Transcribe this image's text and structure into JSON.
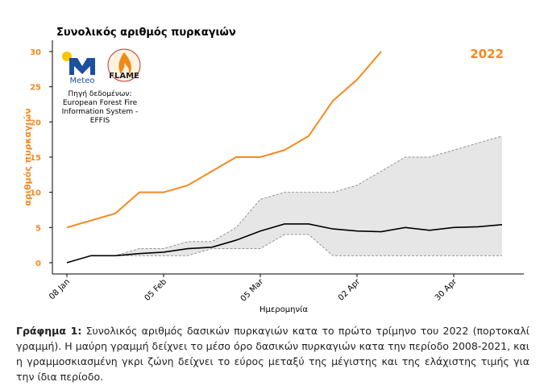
{
  "chart_data": {
    "type": "line",
    "title": "Συνολικός αριθμός πυρκαγιών",
    "ylabel": "αριθμός πυρκαγιών",
    "xlabel": "Ημερομηνία",
    "categories": [
      "08 Jan",
      null,
      null,
      null,
      "05 Feb",
      null,
      null,
      null,
      "05 Mar",
      null,
      null,
      null,
      "02 Apr",
      null,
      null,
      null,
      "30 Apr",
      null,
      null
    ],
    "series": [
      {
        "name": "2022",
        "color": "#f5891f",
        "values": [
          5,
          6,
          7,
          10,
          10,
          11,
          13,
          15,
          15,
          16,
          18,
          23,
          26,
          30,
          null,
          null,
          null,
          null,
          null
        ]
      },
      {
        "color": "#000000",
        "values": [
          0,
          1,
          1,
          1.3,
          1.5,
          2,
          2.2,
          3.2,
          4.5,
          5.5,
          5.5,
          4.8,
          4.5,
          4.4,
          5,
          4.6,
          5,
          5.1,
          5.4
        ]
      }
    ],
    "range": {
      "color": "#e6e6e6",
      "max": [
        0,
        1,
        1,
        2,
        2,
        3,
        3,
        5,
        9,
        10,
        10,
        10,
        11,
        13,
        15,
        15,
        16,
        17,
        18
      ],
      "min": [
        0,
        1,
        1,
        1,
        1,
        1,
        2,
        2,
        2,
        4,
        4,
        1,
        1,
        1,
        1,
        1,
        1,
        1,
        1
      ]
    },
    "ylim": [
      -1.6,
      31.6
    ],
    "yticks": [
      0,
      5,
      10,
      15,
      20,
      25,
      30
    ],
    "logos": {
      "meteo": "Meteo",
      "flame": "FLAME"
    },
    "source": [
      "Πηγή δεδομένων:",
      "European Forest Fire",
      "Information System -",
      "EFFIS"
    ]
  },
  "caption": {
    "label": "Γράφημα 1:",
    "text": "Συνολικός αριθμός δασικών πυρκαγιών κατα το πρώτο τρίμηνο του 2022 (πορτοκαλί γραμμή). Η μαύρη γραμμή δείχνει το μέσο όρο δασικών πυρκαγιών κατα την περίοδο 2008-2021, και η γραμμοσκιασμένη γκρι ζώνη δείχνει το εύρος μεταξύ της μέγιστης και της ελάχιστης τιμής για την ίδια περίοδο."
  }
}
